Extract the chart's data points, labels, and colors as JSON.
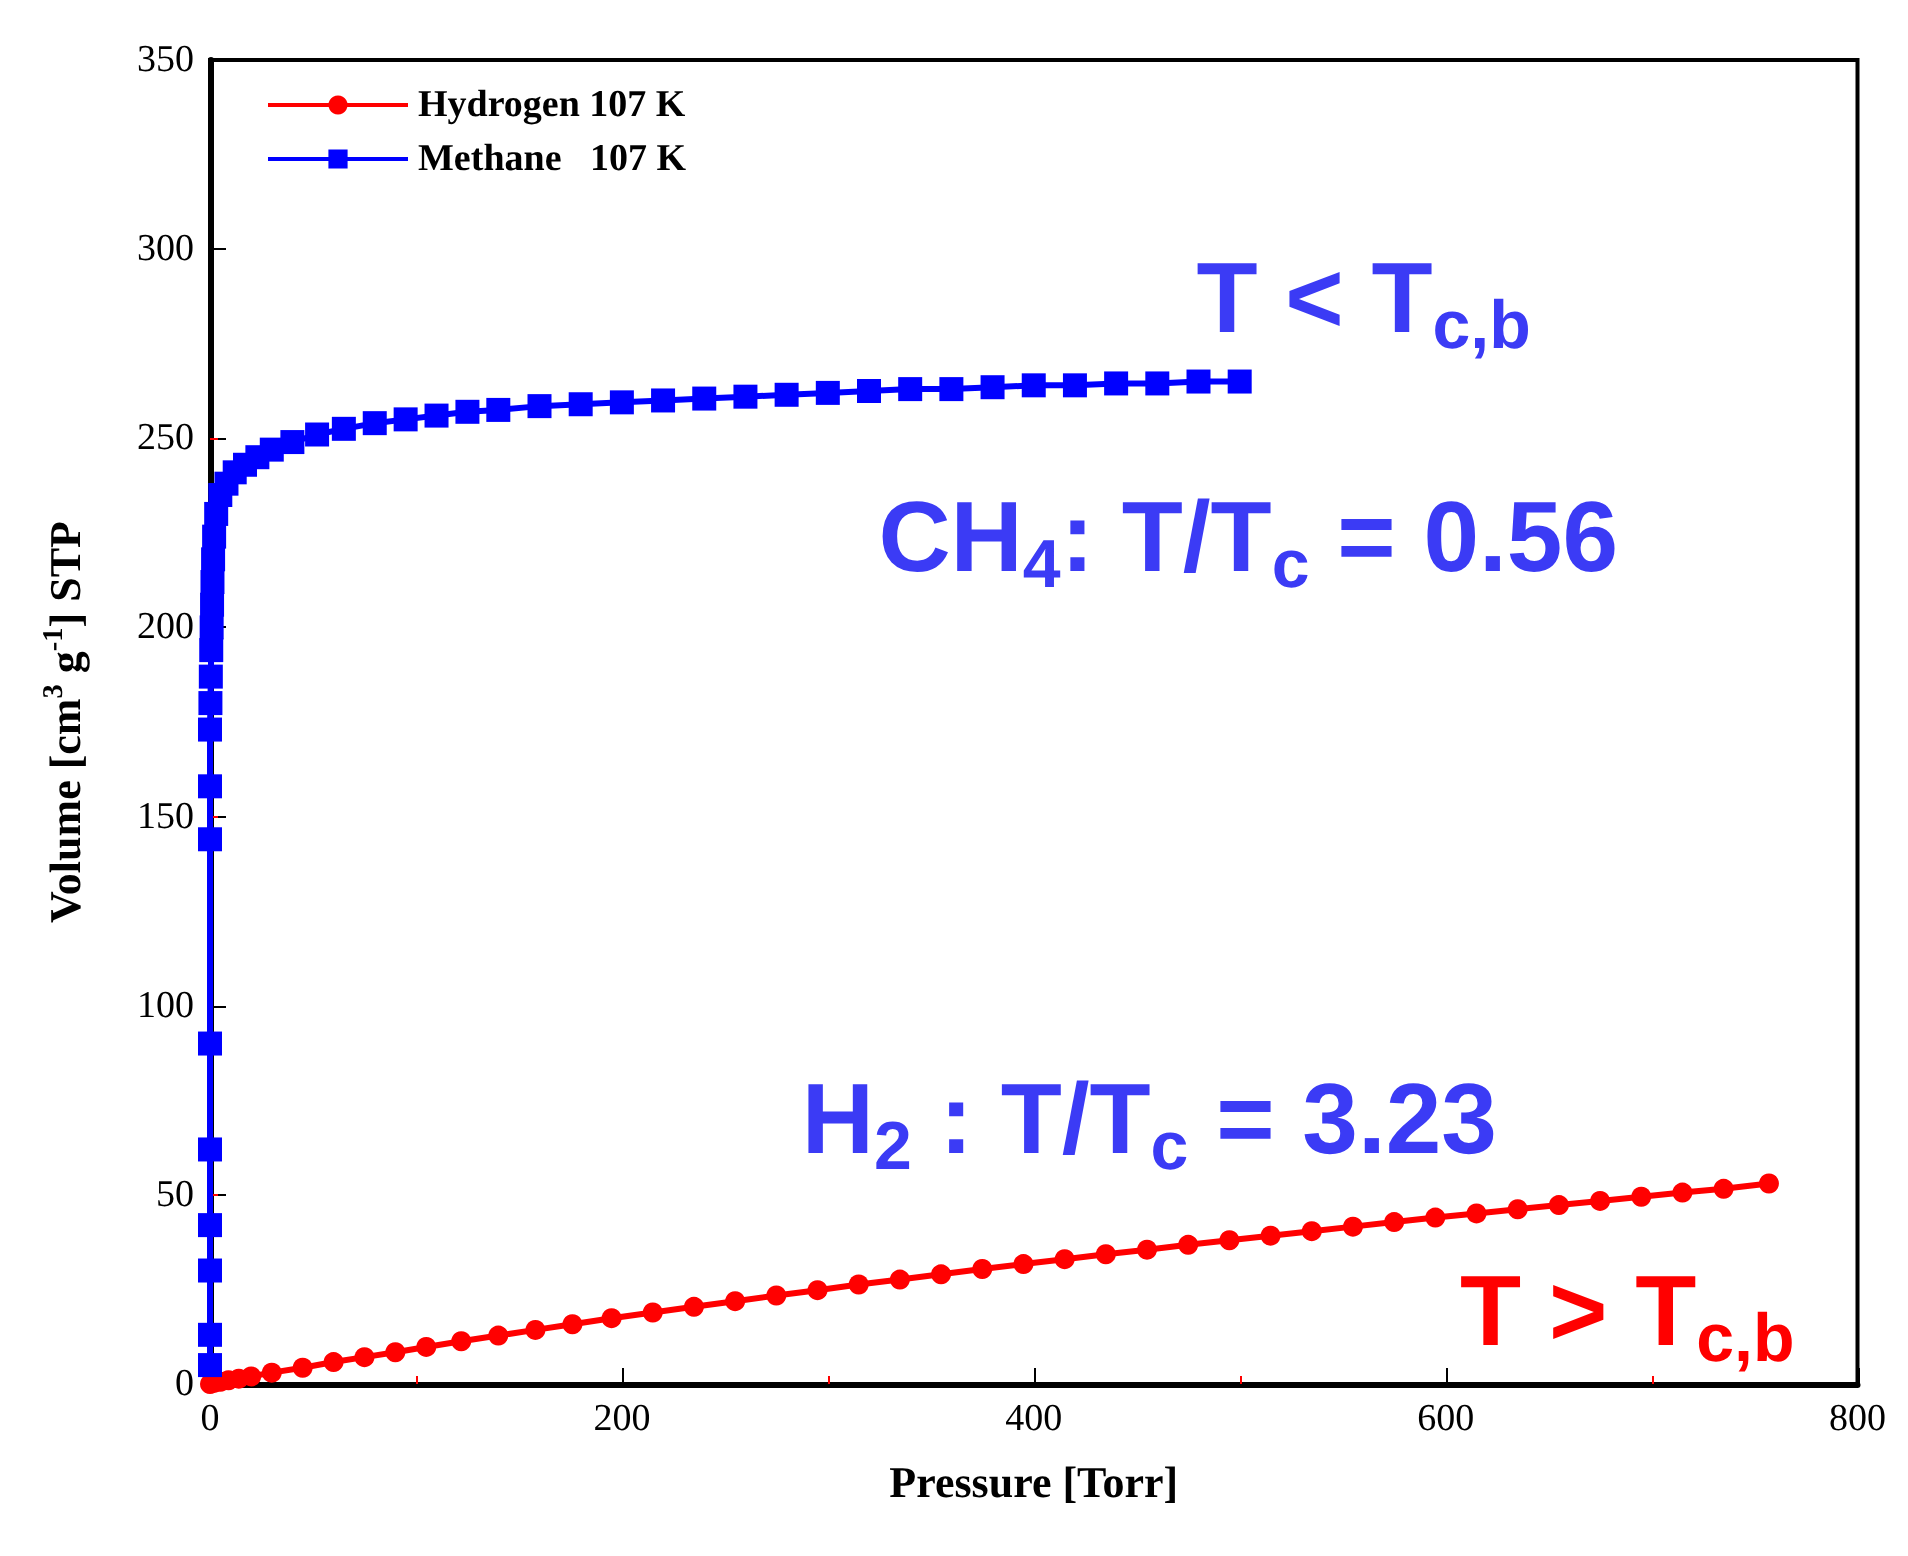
{
  "chart_data": {
    "type": "line",
    "xlabel": "Pressure [Torr]",
    "ylabel": "Volume [cm$^{3}$ g$^{-1}$] STP",
    "xlim": [
      0,
      800
    ],
    "xticks": [
      0,
      200,
      400,
      600,
      800
    ],
    "ylim": [
      0,
      350
    ],
    "yticks": [
      0,
      50,
      100,
      150,
      200,
      250,
      300,
      350
    ],
    "grid": false,
    "legend": "top left",
    "series": [
      {
        "name": "Hydrogen 107 K",
        "color": "#ff0000",
        "marker": "circle",
        "x": [
          0,
          2,
          5,
          9,
          14,
          20,
          30,
          45,
          60,
          75,
          90,
          105,
          122,
          140,
          158,
          176,
          195,
          215,
          235,
          255,
          275,
          295,
          315,
          335,
          355,
          375,
          395,
          415,
          435,
          455,
          475,
          495,
          515,
          535,
          555,
          575,
          595,
          615,
          635,
          655,
          675,
          695,
          715,
          735,
          757
        ],
        "values": [
          0,
          0.3,
          0.6,
          1,
          1.4,
          2,
          3,
          4.3,
          5.8,
          7.1,
          8.4,
          9.8,
          11.3,
          12.8,
          14.3,
          15.8,
          17.4,
          18.9,
          20.4,
          21.9,
          23.4,
          24.8,
          26.3,
          27.6,
          29,
          30.4,
          31.7,
          33,
          34.3,
          35.5,
          36.8,
          38,
          39.2,
          40.4,
          41.6,
          42.8,
          44,
          45.1,
          46.2,
          47.3,
          48.4,
          49.5,
          50.6,
          51.6,
          53
        ]
      },
      {
        "name": "Methane   107 K",
        "color": "#0000ff",
        "marker": "square",
        "x": [
          0,
          0,
          0,
          0,
          0,
          0,
          0,
          0,
          0,
          0.2,
          0.4,
          0.6,
          0.8,
          1,
          1.2,
          1.5,
          2,
          3,
          5,
          8,
          12,
          17,
          23,
          30,
          40,
          52,
          65,
          80,
          95,
          110,
          125,
          140,
          160,
          180,
          200,
          220,
          240,
          260,
          280,
          300,
          320,
          340,
          360,
          380,
          400,
          420,
          440,
          460,
          480,
          500
        ],
        "values": [
          5,
          13,
          30,
          42,
          62,
          90,
          144,
          158,
          173,
          180,
          187,
          194,
          200,
          206,
          212,
          218,
          224,
          230,
          235,
          238,
          241,
          243,
          245,
          247,
          249,
          251,
          252.5,
          254,
          255,
          256,
          257,
          257.5,
          258.5,
          259,
          259.5,
          260,
          260.5,
          261,
          261.5,
          262,
          262.5,
          263,
          263,
          263.5,
          264,
          264,
          264.5,
          264.5,
          265,
          265
        ]
      }
    ],
    "annotations": [
      "T < T$_{c,b}$",
      "CH$_{4}$: T/T$_{c}$ = 0.56",
      "H$_{2}$ : T/T$_{c}$ = 3.23",
      "T > T$_{c,b}$"
    ]
  }
}
